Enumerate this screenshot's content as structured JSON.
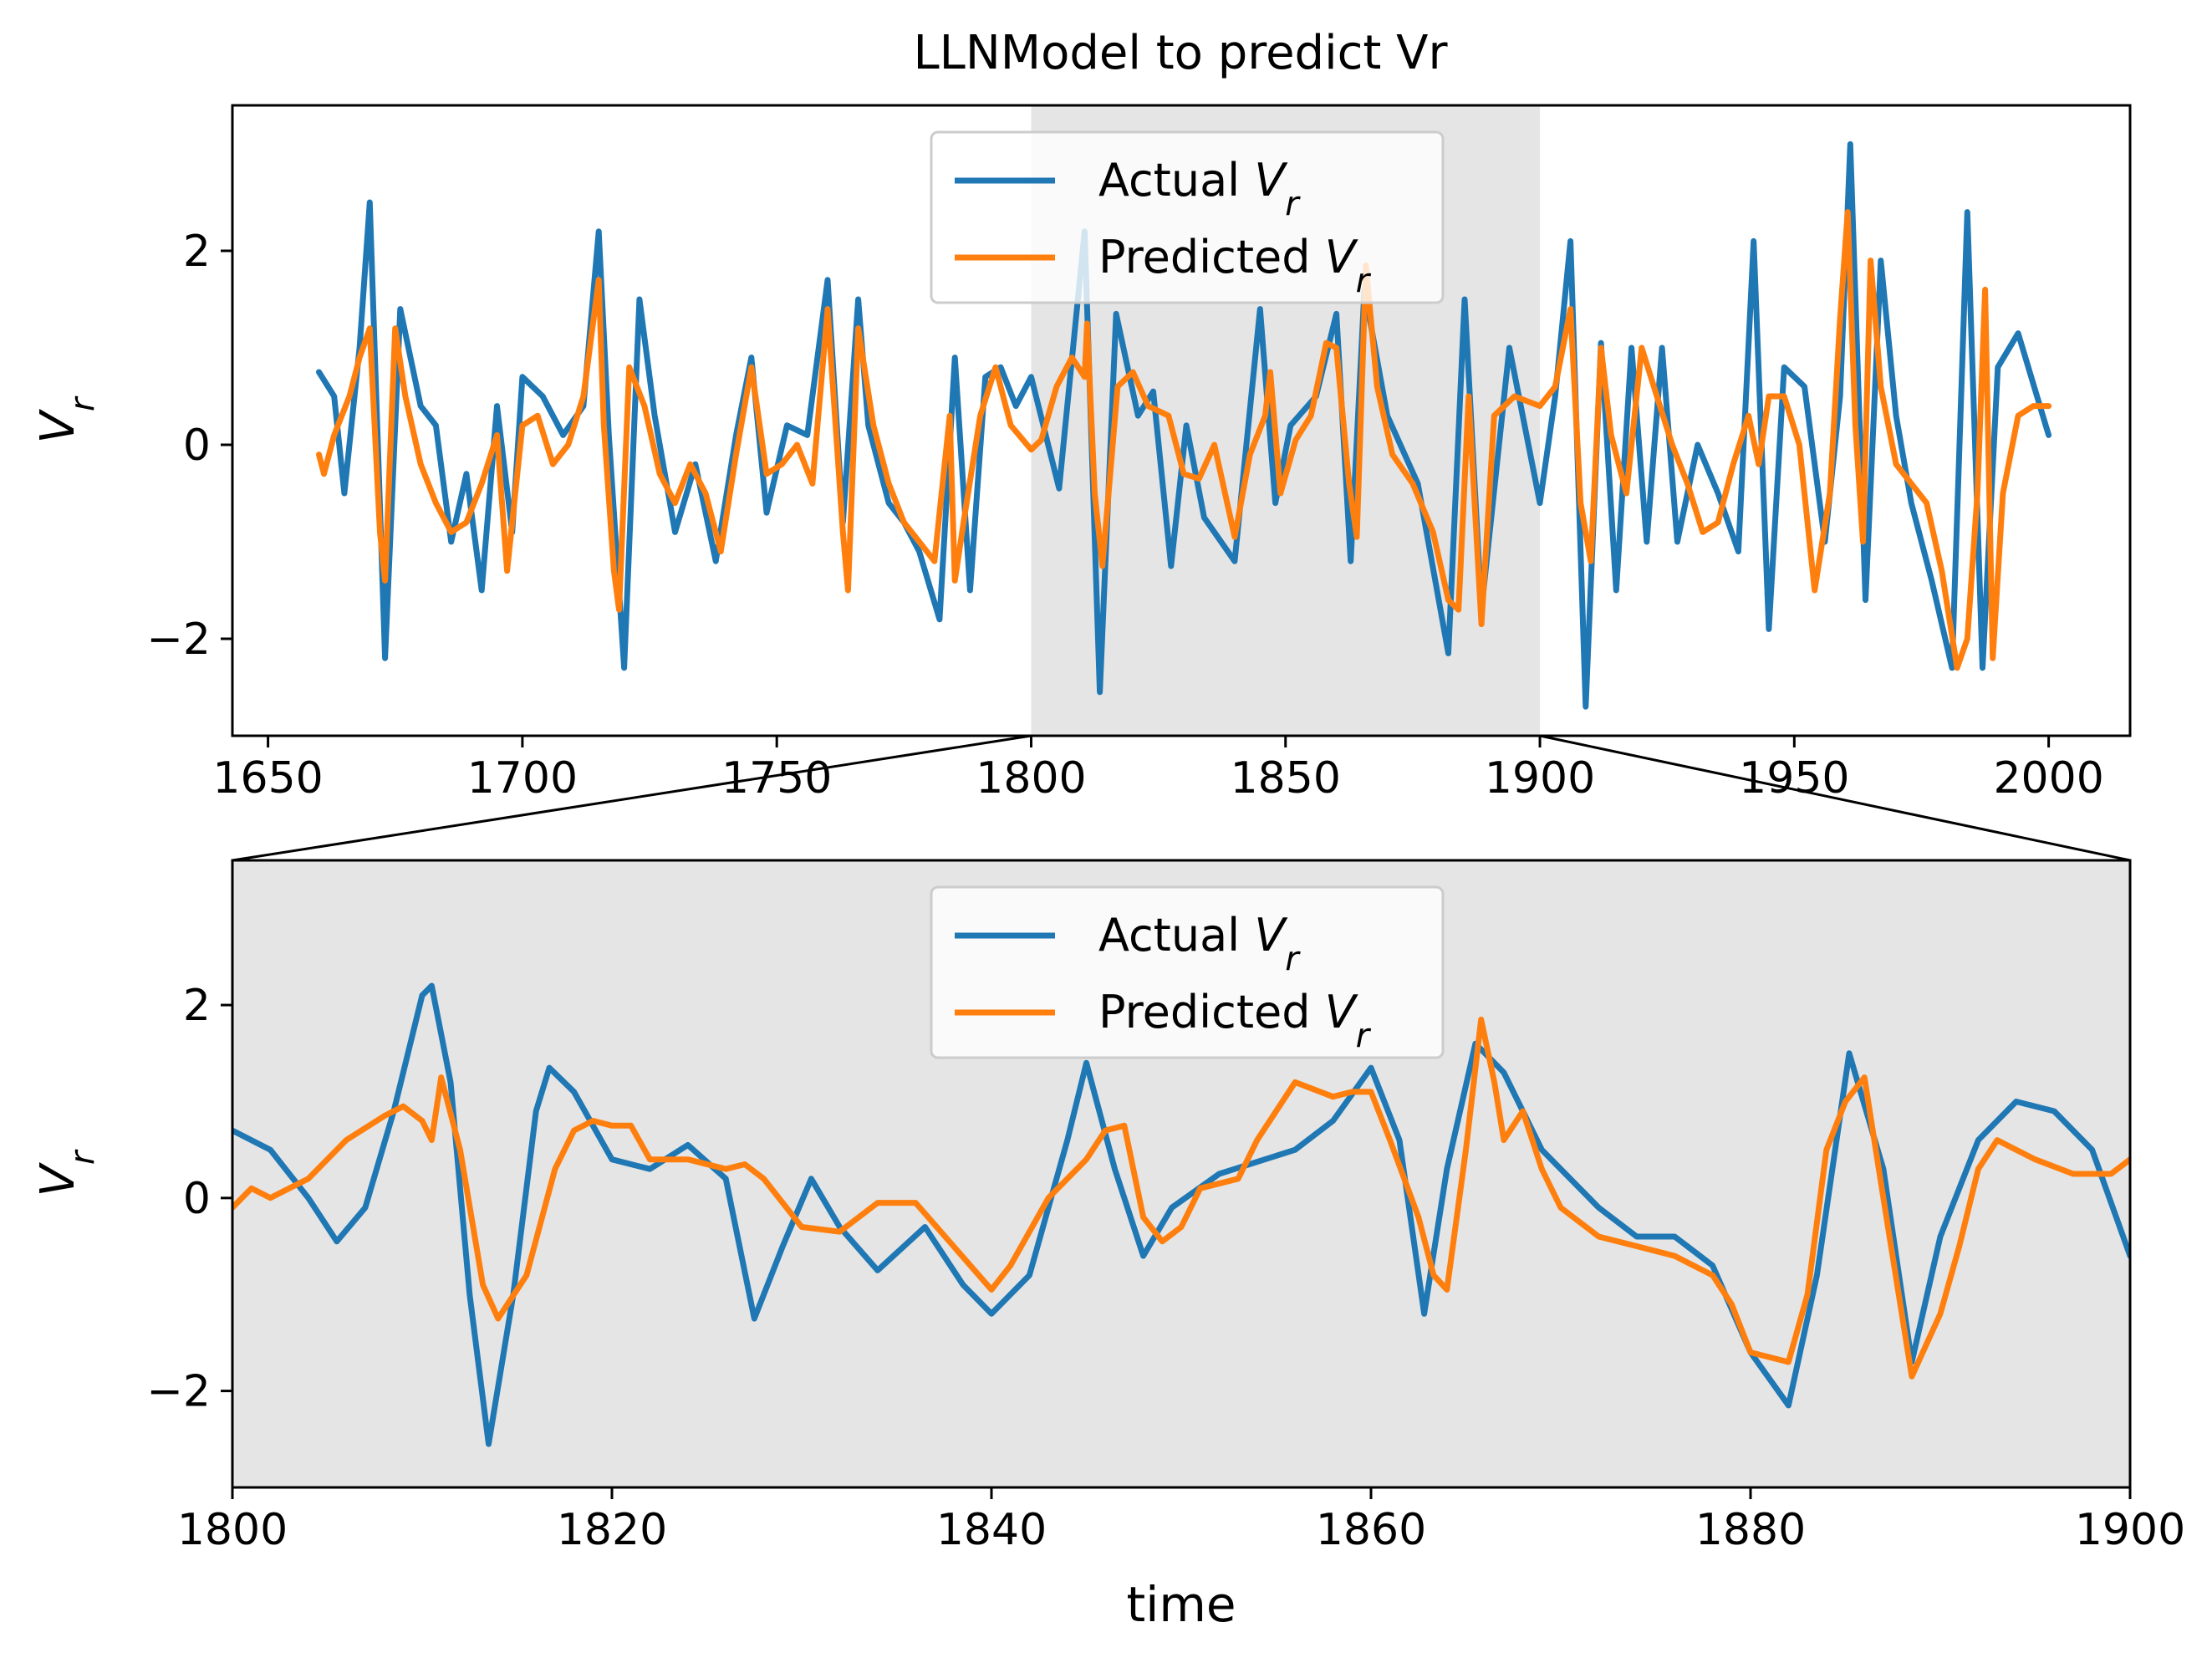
{
  "figure_title": "LLNModel to predict Vr",
  "colors": {
    "actual": "#1f77b4",
    "predicted": "#ff7f0e",
    "highlight": "#e5e5e5",
    "axes": "#000000"
  },
  "chart_data": [
    {
      "type": "line",
      "title": "LLNModel to predict Vr",
      "xlabel": "",
      "ylabel": "V_r",
      "xlim": [
        1643,
        2016
      ],
      "ylim": [
        -3.0,
        3.5
      ],
      "xticks": [
        1650,
        1700,
        1750,
        1800,
        1850,
        1900,
        1950,
        2000
      ],
      "yticks": [
        -2,
        0,
        2
      ],
      "highlight_span": [
        1800,
        1900
      ],
      "legend": {
        "placement": "upper center",
        "entries": [
          "Actual V_r",
          "Predicted V_r"
        ]
      },
      "series": [
        {
          "name": "Actual V_r",
          "x": [
            1660,
            1663,
            1665,
            1668,
            1670,
            1673,
            1676,
            1680,
            1683,
            1686,
            1689,
            1692,
            1695,
            1698,
            1700,
            1704,
            1708,
            1712,
            1715,
            1717,
            1720,
            1723,
            1726,
            1730,
            1734,
            1738,
            1742,
            1745,
            1748,
            1752,
            1756,
            1760,
            1763,
            1766,
            1768,
            1772,
            1775,
            1778,
            1782,
            1785,
            1788,
            1791,
            1794,
            1797,
            1800,
            1805.5,
            1810.5,
            1813.5,
            1816.7,
            1821,
            1824,
            1827.5,
            1830.5,
            1834,
            1840,
            1845,
            1848,
            1851,
            1856,
            1860,
            1862.8,
            1865.5,
            1870,
            1876,
            1882,
            1885.2,
            1888.5,
            1894,
            1900,
            1903,
            1906,
            1909,
            1912,
            1915,
            1918,
            1921,
            1924,
            1927,
            1931,
            1935,
            1939,
            1942,
            1945,
            1948,
            1952,
            1956,
            1959,
            1961,
            1964,
            1967,
            1970,
            1973,
            1977,
            1981,
            1984,
            1987,
            1990,
            1994,
            2000
          ],
          "y": [
            0.75,
            0.5,
            -0.5,
            1.0,
            2.5,
            -2.2,
            1.4,
            0.4,
            0.2,
            -1.0,
            -0.3,
            -1.5,
            0.4,
            -0.9,
            0.7,
            0.5,
            0.1,
            0.4,
            2.2,
            0.1,
            -2.3,
            1.5,
            0.3,
            -0.9,
            -0.2,
            -1.2,
            0.1,
            0.9,
            -0.7,
            0.2,
            0.1,
            1.7,
            -0.8,
            1.5,
            0.2,
            -0.6,
            -0.8,
            -1.1,
            -1.8,
            0.9,
            -1.5,
            0.7,
            0.8,
            0.4,
            0.7,
            -0.45,
            2.2,
            -2.55,
            1.35,
            0.3,
            0.55,
            -1.25,
            0.2,
            -0.75,
            -1.2,
            1.4,
            -0.6,
            0.2,
            0.5,
            1.35,
            -1.2,
            1.6,
            0.3,
            -0.4,
            -2.15,
            1.5,
            -1.7,
            1.0,
            -0.6,
            0.5,
            2.1,
            -2.7,
            1.05,
            -1.5,
            1.0,
            -1.0,
            1.0,
            -1.0,
            0.0,
            -0.5,
            -1.1,
            2.1,
            -1.9,
            0.8,
            0.6,
            -1.0,
            0.5,
            3.1,
            -1.6,
            1.9,
            0.3,
            -0.6,
            -1.4,
            -2.3,
            2.4,
            -2.3,
            0.8,
            1.15,
            0.1
          ]
        },
        {
          "name": "Predicted V_r",
          "x": [
            1660,
            1661,
            1663,
            1666,
            1668,
            1670,
            1672,
            1673,
            1675,
            1677,
            1680,
            1683,
            1686,
            1689,
            1692,
            1695,
            1697,
            1698,
            1700,
            1703,
            1706,
            1709,
            1712,
            1715,
            1716,
            1718,
            1719,
            1721,
            1724,
            1727,
            1730,
            1733,
            1736,
            1739,
            1742,
            1745,
            1748,
            1751,
            1754,
            1757,
            1760,
            1763,
            1764,
            1766,
            1769,
            1772,
            1775,
            1778,
            1781,
            1784,
            1785,
            1787,
            1790,
            1793,
            1796,
            1800,
            1802,
            1805,
            1808,
            1810.5,
            1811,
            1812.5,
            1814,
            1817,
            1820,
            1823,
            1827,
            1830,
            1833,
            1836,
            1840,
            1843,
            1846,
            1847,
            1849,
            1852,
            1855,
            1858,
            1860,
            1862.5,
            1864,
            1865.8,
            1868,
            1871,
            1875,
            1879,
            1882,
            1884,
            1886,
            1888.5,
            1891,
            1895,
            1900,
            1903,
            1906,
            1908,
            1910,
            1912,
            1914,
            1917,
            1920,
            1923,
            1926,
            1929,
            1932,
            1935,
            1938,
            1941,
            1943,
            1945,
            1948,
            1951,
            1954,
            1957,
            1959,
            1960.5,
            1962,
            1963.5,
            1965,
            1967,
            1970,
            1973,
            1976,
            1979,
            1982,
            1984,
            1986,
            1987.5,
            1989,
            1991,
            1994,
            1997,
            2000
          ],
          "y": [
            -0.1,
            -0.3,
            0.1,
            0.5,
            0.9,
            1.2,
            -0.9,
            -1.4,
            1.2,
            0.5,
            -0.2,
            -0.6,
            -0.9,
            -0.8,
            -0.4,
            0.1,
            -1.3,
            -0.8,
            0.2,
            0.3,
            -0.2,
            0.0,
            0.5,
            1.7,
            0.2,
            -1.3,
            -1.7,
            0.8,
            0.4,
            -0.3,
            -0.6,
            -0.2,
            -0.5,
            -1.1,
            -0.1,
            0.8,
            -0.3,
            -0.2,
            0.0,
            -0.4,
            1.4,
            -0.9,
            -1.5,
            1.2,
            0.2,
            -0.4,
            -0.8,
            -1.0,
            -1.2,
            0.3,
            -1.4,
            -0.7,
            0.3,
            0.8,
            0.2,
            -0.05,
            0.05,
            0.6,
            0.9,
            0.7,
            1.25,
            -0.5,
            -1.25,
            0.6,
            0.75,
            0.4,
            0.3,
            -0.3,
            -0.35,
            0.0,
            -0.95,
            -0.1,
            0.3,
            0.75,
            -0.5,
            0.05,
            0.3,
            1.05,
            1.0,
            -0.4,
            -0.95,
            1.85,
            0.6,
            -0.1,
            -0.4,
            -0.9,
            -1.6,
            -1.7,
            0.5,
            -1.85,
            0.3,
            0.5,
            0.4,
            0.6,
            1.4,
            -0.6,
            -1.2,
            1.0,
            0.1,
            -0.5,
            1.0,
            0.5,
            0.0,
            -0.4,
            -0.9,
            -0.8,
            -0.2,
            0.3,
            -0.2,
            0.5,
            0.5,
            0.0,
            -1.5,
            -0.5,
            1.3,
            2.4,
            0.2,
            -1.0,
            1.9,
            0.6,
            -0.2,
            -0.4,
            -0.6,
            -1.3,
            -2.3,
            -2.0,
            -0.5,
            1.6,
            -2.2,
            -0.5,
            0.3,
            0.4,
            0.4
          ]
        }
      ]
    },
    {
      "type": "line",
      "title": "",
      "xlabel": "time",
      "ylabel": "V_r",
      "xlim": [
        1800,
        1900
      ],
      "ylim": [
        -3.0,
        3.5
      ],
      "xticks": [
        1800,
        1820,
        1840,
        1860,
        1880,
        1900
      ],
      "yticks": [
        -2,
        0,
        2
      ],
      "background": "#e5e5e5",
      "legend": {
        "placement": "upper center",
        "entries": [
          "Actual V_r",
          "Predicted V_r"
        ]
      },
      "series": [
        {
          "name": "Actual V_r",
          "x": [
            1800,
            1802,
            1804,
            1805.5,
            1807,
            1808.5,
            1810,
            1810.5,
            1811.5,
            1812.5,
            1813.5,
            1814.8,
            1816,
            1816.7,
            1818,
            1820,
            1822,
            1824,
            1826,
            1827.5,
            1829,
            1830.5,
            1832,
            1834,
            1836.5,
            1838.5,
            1840,
            1842,
            1844,
            1845,
            1846.5,
            1848,
            1849.5,
            1852,
            1856,
            1858,
            1860,
            1861.5,
            1862.8,
            1864,
            1865.5,
            1867,
            1869,
            1872,
            1874,
            1876,
            1878,
            1880,
            1882,
            1883.5,
            1885.2,
            1887,
            1888.5,
            1890,
            1892,
            1894,
            1896,
            1898,
            1900
          ],
          "y": [
            0.7,
            0.5,
            0.0,
            -0.45,
            -0.1,
            0.9,
            2.1,
            2.2,
            1.2,
            -1.0,
            -2.55,
            -1.0,
            0.9,
            1.35,
            1.1,
            0.4,
            0.3,
            0.55,
            0.2,
            -1.25,
            -0.5,
            0.2,
            -0.3,
            -0.75,
            -0.3,
            -0.9,
            -1.2,
            -0.8,
            0.6,
            1.4,
            0.3,
            -0.6,
            -0.1,
            0.25,
            0.5,
            0.8,
            1.35,
            0.6,
            -1.2,
            0.3,
            1.6,
            1.3,
            0.5,
            -0.1,
            -0.4,
            -0.4,
            -0.7,
            -1.6,
            -2.15,
            -0.8,
            1.5,
            0.3,
            -1.7,
            -0.4,
            0.6,
            1.0,
            0.9,
            0.5,
            -0.6
          ]
        },
        {
          "name": "Predicted V_r",
          "x": [
            1800,
            1801,
            1802,
            1804,
            1806,
            1808,
            1809,
            1810,
            1810.5,
            1811,
            1812,
            1813.2,
            1814,
            1815.5,
            1817,
            1818,
            1819,
            1820,
            1821,
            1822,
            1824,
            1826,
            1827,
            1828,
            1830,
            1832,
            1834,
            1836,
            1838,
            1840,
            1841,
            1843,
            1845,
            1846,
            1847,
            1848,
            1849,
            1850,
            1851,
            1853,
            1854,
            1856,
            1858,
            1859,
            1860,
            1861,
            1862.5,
            1863.3,
            1864,
            1865,
            1865.8,
            1866.5,
            1867,
            1868,
            1869,
            1870,
            1872,
            1874,
            1876,
            1878,
            1879,
            1880,
            1882,
            1883,
            1884,
            1885,
            1886,
            1887,
            1888.5,
            1890,
            1891,
            1892,
            1893,
            1894,
            1895,
            1897,
            1899,
            1900
          ],
          "y": [
            -0.1,
            0.1,
            0.0,
            0.2,
            0.6,
            0.85,
            0.95,
            0.8,
            0.6,
            1.25,
            0.5,
            -0.9,
            -1.25,
            -0.8,
            0.3,
            0.7,
            0.8,
            0.75,
            0.75,
            0.4,
            0.4,
            0.3,
            0.35,
            0.2,
            -0.3,
            -0.35,
            -0.05,
            -0.05,
            -0.5,
            -0.95,
            -0.7,
            0.0,
            0.4,
            0.7,
            0.75,
            -0.2,
            -0.45,
            -0.3,
            0.1,
            0.2,
            0.6,
            1.2,
            1.05,
            1.1,
            1.1,
            0.6,
            -0.2,
            -0.8,
            -0.95,
            0.5,
            1.85,
            1.2,
            0.6,
            0.9,
            0.3,
            -0.1,
            -0.4,
            -0.5,
            -0.6,
            -0.8,
            -1.1,
            -1.6,
            -1.7,
            -1.0,
            0.5,
            1.0,
            1.25,
            0.0,
            -1.85,
            -1.2,
            -0.5,
            0.3,
            0.6,
            0.5,
            0.4,
            0.25,
            0.25,
            0.4
          ]
        }
      ]
    }
  ]
}
